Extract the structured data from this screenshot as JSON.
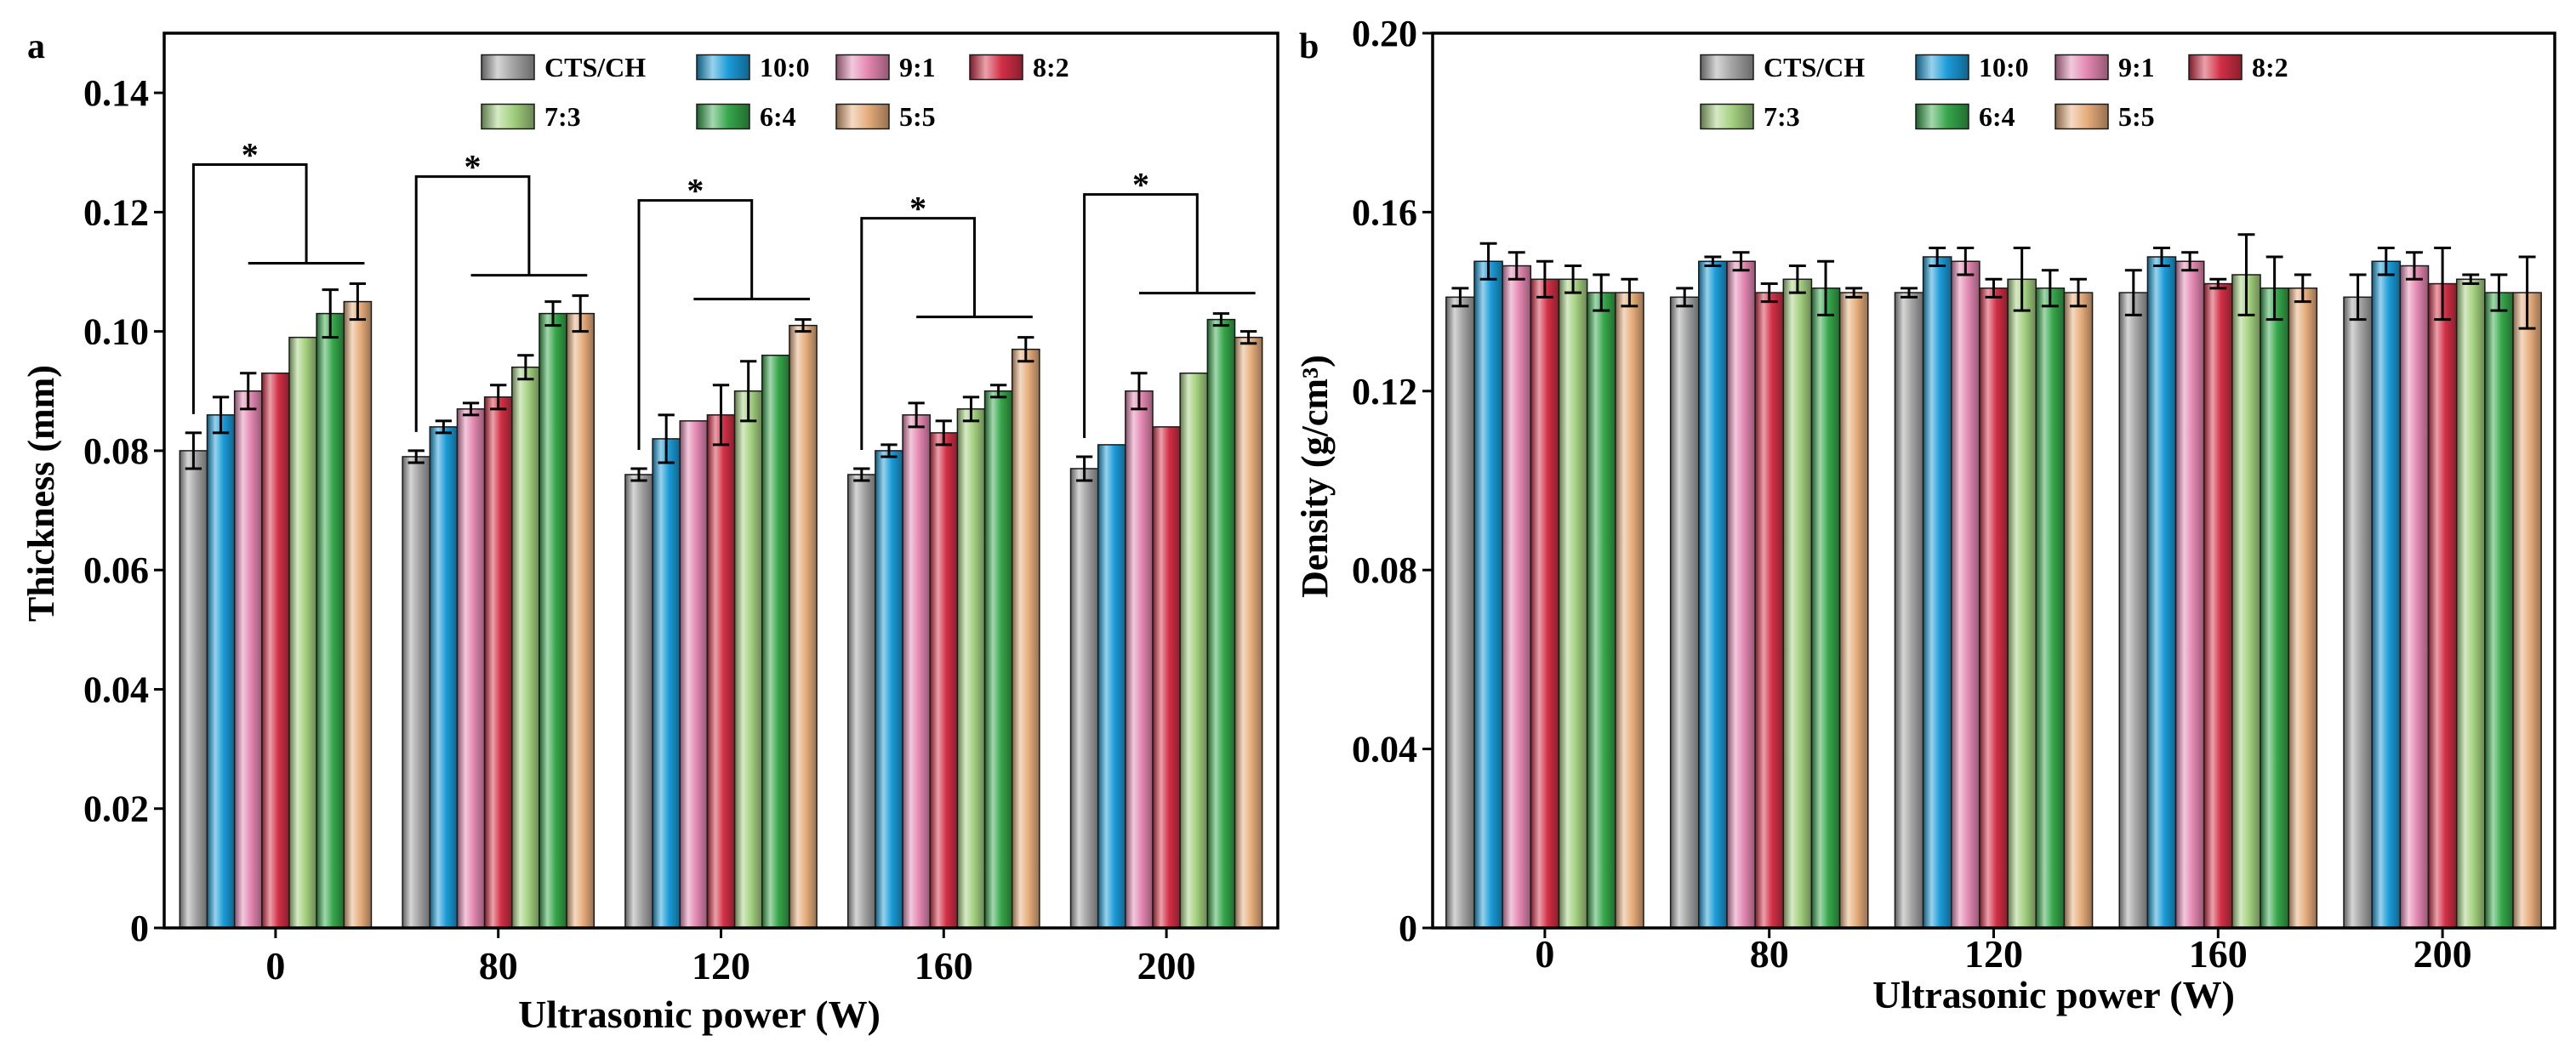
{
  "chart_data": [
    {
      "panel": "a",
      "type": "bar",
      "xlabel": "Ultrasonic power (W)",
      "ylabel": "Thickness (mm)",
      "categories": [
        "0",
        "80",
        "120",
        "160",
        "200"
      ],
      "ylim": [
        0,
        0.15
      ],
      "yticks": [
        0,
        0.02,
        0.04,
        0.06,
        0.08,
        0.1,
        0.12,
        0.14
      ],
      "ytick_labels": [
        "0",
        "0.02",
        "0.04",
        "0.06",
        "0.08",
        "0.10",
        "0.12",
        "0.14"
      ],
      "grid": false,
      "legend_position": "top-center",
      "series": [
        {
          "name": "CTS/CH",
          "color": "#a3a3a3",
          "values": [
            0.08,
            0.079,
            0.076,
            0.076,
            0.077
          ],
          "errors": [
            0.003,
            0.001,
            0.001,
            0.001,
            0.002
          ]
        },
        {
          "name": "10:0",
          "color": "#1a9bd7",
          "values": [
            0.086,
            0.084,
            0.082,
            0.08,
            0.081
          ],
          "errors": [
            0.003,
            0.001,
            0.004,
            0.001,
            0.0
          ]
        },
        {
          "name": "9:1",
          "color": "#e387b1",
          "values": [
            0.09,
            0.087,
            0.085,
            0.086,
            0.09
          ],
          "errors": [
            0.003,
            0.001,
            0.0,
            0.002,
            0.003
          ]
        },
        {
          "name": "8:2",
          "color": "#d22f45",
          "values": [
            0.093,
            0.089,
            0.086,
            0.083,
            0.084
          ],
          "errors": [
            0.0,
            0.002,
            0.005,
            0.002,
            0.0
          ]
        },
        {
          "name": "7:3",
          "color": "#a3d07f",
          "values": [
            0.099,
            0.094,
            0.09,
            0.087,
            0.093
          ],
          "errors": [
            0.0,
            0.002,
            0.005,
            0.002,
            0.0
          ]
        },
        {
          "name": "6:4",
          "color": "#35a64a",
          "values": [
            0.103,
            0.103,
            0.096,
            0.09,
            0.102
          ],
          "errors": [
            0.004,
            0.002,
            0.0,
            0.001,
            0.001
          ]
        },
        {
          "name": "5:5",
          "color": "#e6ad7b",
          "values": [
            0.105,
            0.103,
            0.101,
            0.097,
            0.099
          ],
          "errors": [
            0.003,
            0.003,
            0.001,
            0.002,
            0.001
          ]
        }
      ],
      "significance": [
        {
          "category_index": 0,
          "label": "*"
        },
        {
          "category_index": 1,
          "label": "*"
        },
        {
          "category_index": 2,
          "label": "*"
        },
        {
          "category_index": 3,
          "label": "*"
        },
        {
          "category_index": 4,
          "label": "*"
        }
      ]
    },
    {
      "panel": "b",
      "type": "bar",
      "xlabel": "Ultrasonic power (W)",
      "ylabel": "Density (g/cm³)",
      "categories": [
        "0",
        "80",
        "120",
        "160",
        "200"
      ],
      "ylim": [
        0,
        0.2
      ],
      "yticks": [
        0,
        0.04,
        0.08,
        0.12,
        0.16,
        0.2
      ],
      "ytick_labels": [
        "0",
        "0.04",
        "0.08",
        "0.12",
        "0.16",
        "0.20"
      ],
      "grid": false,
      "legend_position": "top-center",
      "series": [
        {
          "name": "CTS/CH",
          "color": "#a3a3a3",
          "values": [
            0.141,
            0.141,
            0.142,
            0.142,
            0.141
          ],
          "errors": [
            0.002,
            0.002,
            0.001,
            0.005,
            0.005
          ]
        },
        {
          "name": "10:0",
          "color": "#1a9bd7",
          "values": [
            0.149,
            0.149,
            0.15,
            0.15,
            0.149
          ],
          "errors": [
            0.004,
            0.001,
            0.002,
            0.002,
            0.003
          ]
        },
        {
          "name": "9:1",
          "color": "#e387b1",
          "values": [
            0.148,
            0.149,
            0.149,
            0.149,
            0.148
          ],
          "errors": [
            0.003,
            0.002,
            0.003,
            0.002,
            0.003
          ]
        },
        {
          "name": "8:2",
          "color": "#d22f45",
          "values": [
            0.145,
            0.142,
            0.143,
            0.144,
            0.144
          ],
          "errors": [
            0.004,
            0.002,
            0.002,
            0.001,
            0.008
          ]
        },
        {
          "name": "7:3",
          "color": "#a3d07f",
          "values": [
            0.145,
            0.145,
            0.145,
            0.146,
            0.145
          ],
          "errors": [
            0.003,
            0.003,
            0.007,
            0.009,
            0.001
          ]
        },
        {
          "name": "6:4",
          "color": "#35a64a",
          "values": [
            0.142,
            0.143,
            0.143,
            0.143,
            0.142
          ],
          "errors": [
            0.004,
            0.006,
            0.004,
            0.007,
            0.004
          ]
        },
        {
          "name": "5:5",
          "color": "#e6ad7b",
          "values": [
            0.142,
            0.142,
            0.142,
            0.143,
            0.142
          ],
          "errors": [
            0.003,
            0.001,
            0.003,
            0.003,
            0.008
          ]
        }
      ]
    }
  ]
}
